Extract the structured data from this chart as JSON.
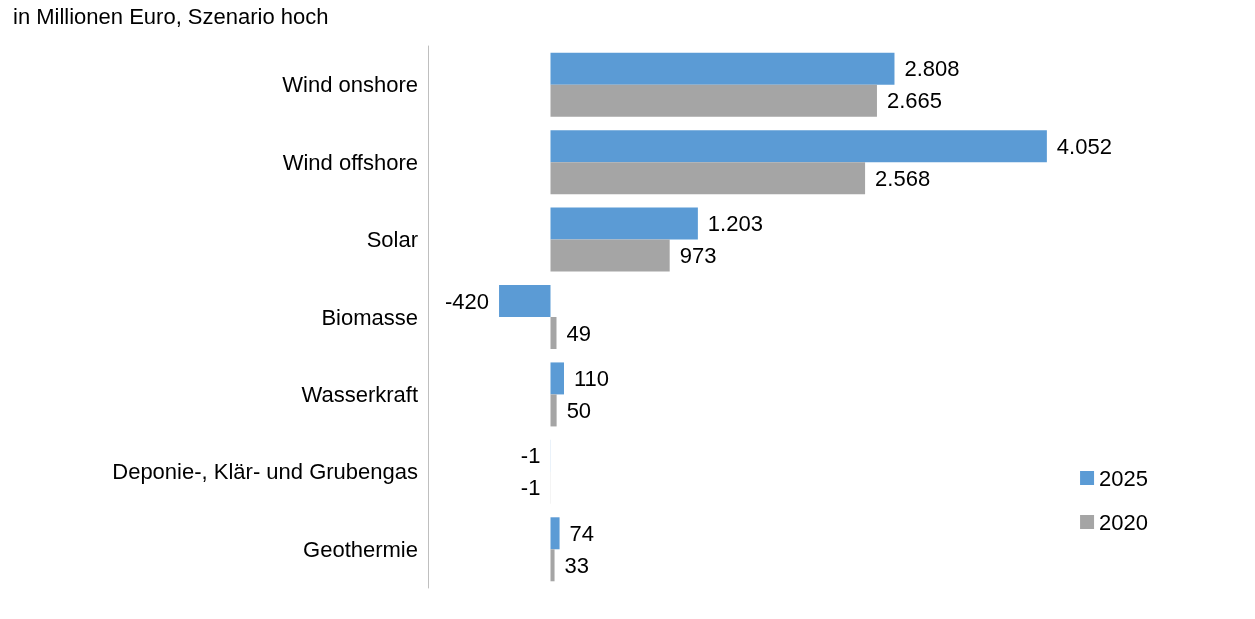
{
  "chart_data": {
    "type": "bar",
    "orientation": "horizontal",
    "subtitle": "in Millionen Euro, Szenario hoch",
    "categories": [
      "Wind onshore",
      "Wind offshore",
      "Solar",
      "Biomasse",
      "Wasserkraft",
      "Deponie-, Klär- und Grubengas",
      "Geothermie"
    ],
    "series": [
      {
        "name": "2025",
        "color": "#5b9bd5",
        "values": [
          2808,
          4052,
          1203,
          -420,
          110,
          -1,
          74
        ],
        "value_labels": [
          "2.808",
          "4.052",
          "1.203",
          "-420",
          "110",
          "-1",
          "74"
        ]
      },
      {
        "name": "2020",
        "color": "#a5a5a5",
        "values": [
          2665,
          2568,
          973,
          49,
          50,
          -1,
          33
        ],
        "value_labels": [
          "2.665",
          "2.568",
          "973",
          "49",
          "50",
          "-1",
          "33"
        ]
      }
    ],
    "legend": "bottom right",
    "grid": false
  }
}
